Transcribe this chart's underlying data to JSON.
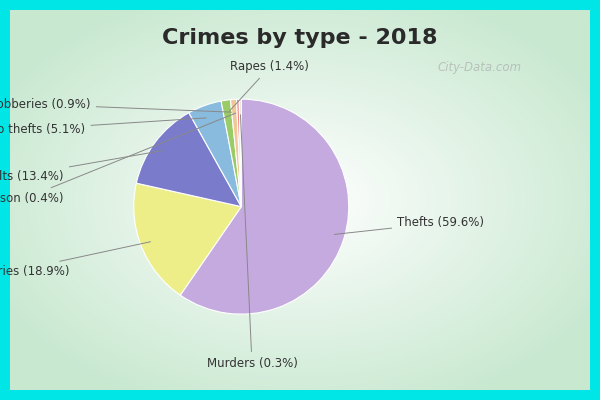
{
  "title": "Crimes by type - 2018",
  "labels": [
    "Thefts",
    "Burglaries",
    "Assaults",
    "Auto thefts",
    "Rapes",
    "Robberies",
    "Arson",
    "Murders"
  ],
  "values": [
    59.6,
    18.9,
    13.4,
    5.1,
    1.4,
    0.9,
    0.4,
    0.3
  ],
  "colors": [
    "#C4AADE",
    "#EEEE88",
    "#7B7BCC",
    "#88BBDD",
    "#99CC66",
    "#F0C898",
    "#F08888",
    "#DDDDCC"
  ],
  "border_color": "#00E5E5",
  "border_thickness": 10,
  "bg_color_center": "#FFFFFF",
  "bg_color_edge": "#C8E8D8",
  "title_fontsize": 16,
  "label_fontsize": 8.5,
  "watermark": "City-Data.com",
  "startangle": 90,
  "label_color": "#333333",
  "line_color": "#888888"
}
